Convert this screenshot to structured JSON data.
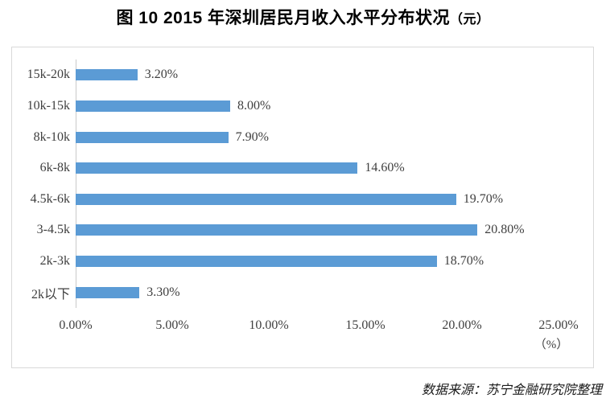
{
  "title": {
    "text": "图 10   2015 年深圳居民月收入水平分布状况",
    "unit": "（元）"
  },
  "chart_data": {
    "type": "bar",
    "orientation": "horizontal",
    "title": "图 10 2015 年深圳居民月收入水平分布状况（元）",
    "categories": [
      "15k-20k",
      "10k-15k",
      "8k-10k",
      "6k-8k",
      "4.5k-6k",
      "3-4.5k",
      "2k-3k",
      "2k以下"
    ],
    "values": [
      3.2,
      8.0,
      7.9,
      14.6,
      19.7,
      20.8,
      18.7,
      3.3
    ],
    "value_labels": [
      "3.20%",
      "8.00%",
      "7.90%",
      "14.60%",
      "19.70%",
      "20.80%",
      "18.70%",
      "3.30%"
    ],
    "x_ticks": [
      "0.00%",
      "5.00%",
      "10.00%",
      "15.00%",
      "20.00%",
      "25.00%"
    ],
    "x_tick_values": [
      0,
      5,
      10,
      15,
      20,
      25
    ],
    "x_axis_unit": "（%）",
    "xlim": [
      0,
      25
    ],
    "grid": false,
    "data_labels": true,
    "legend": false,
    "bar_color": "#5b9bd5",
    "axis_line_color": "#c9c9c9",
    "frame_color": "#d9d9d9"
  },
  "source_note": "数据来源：苏宁金融研究院整理"
}
